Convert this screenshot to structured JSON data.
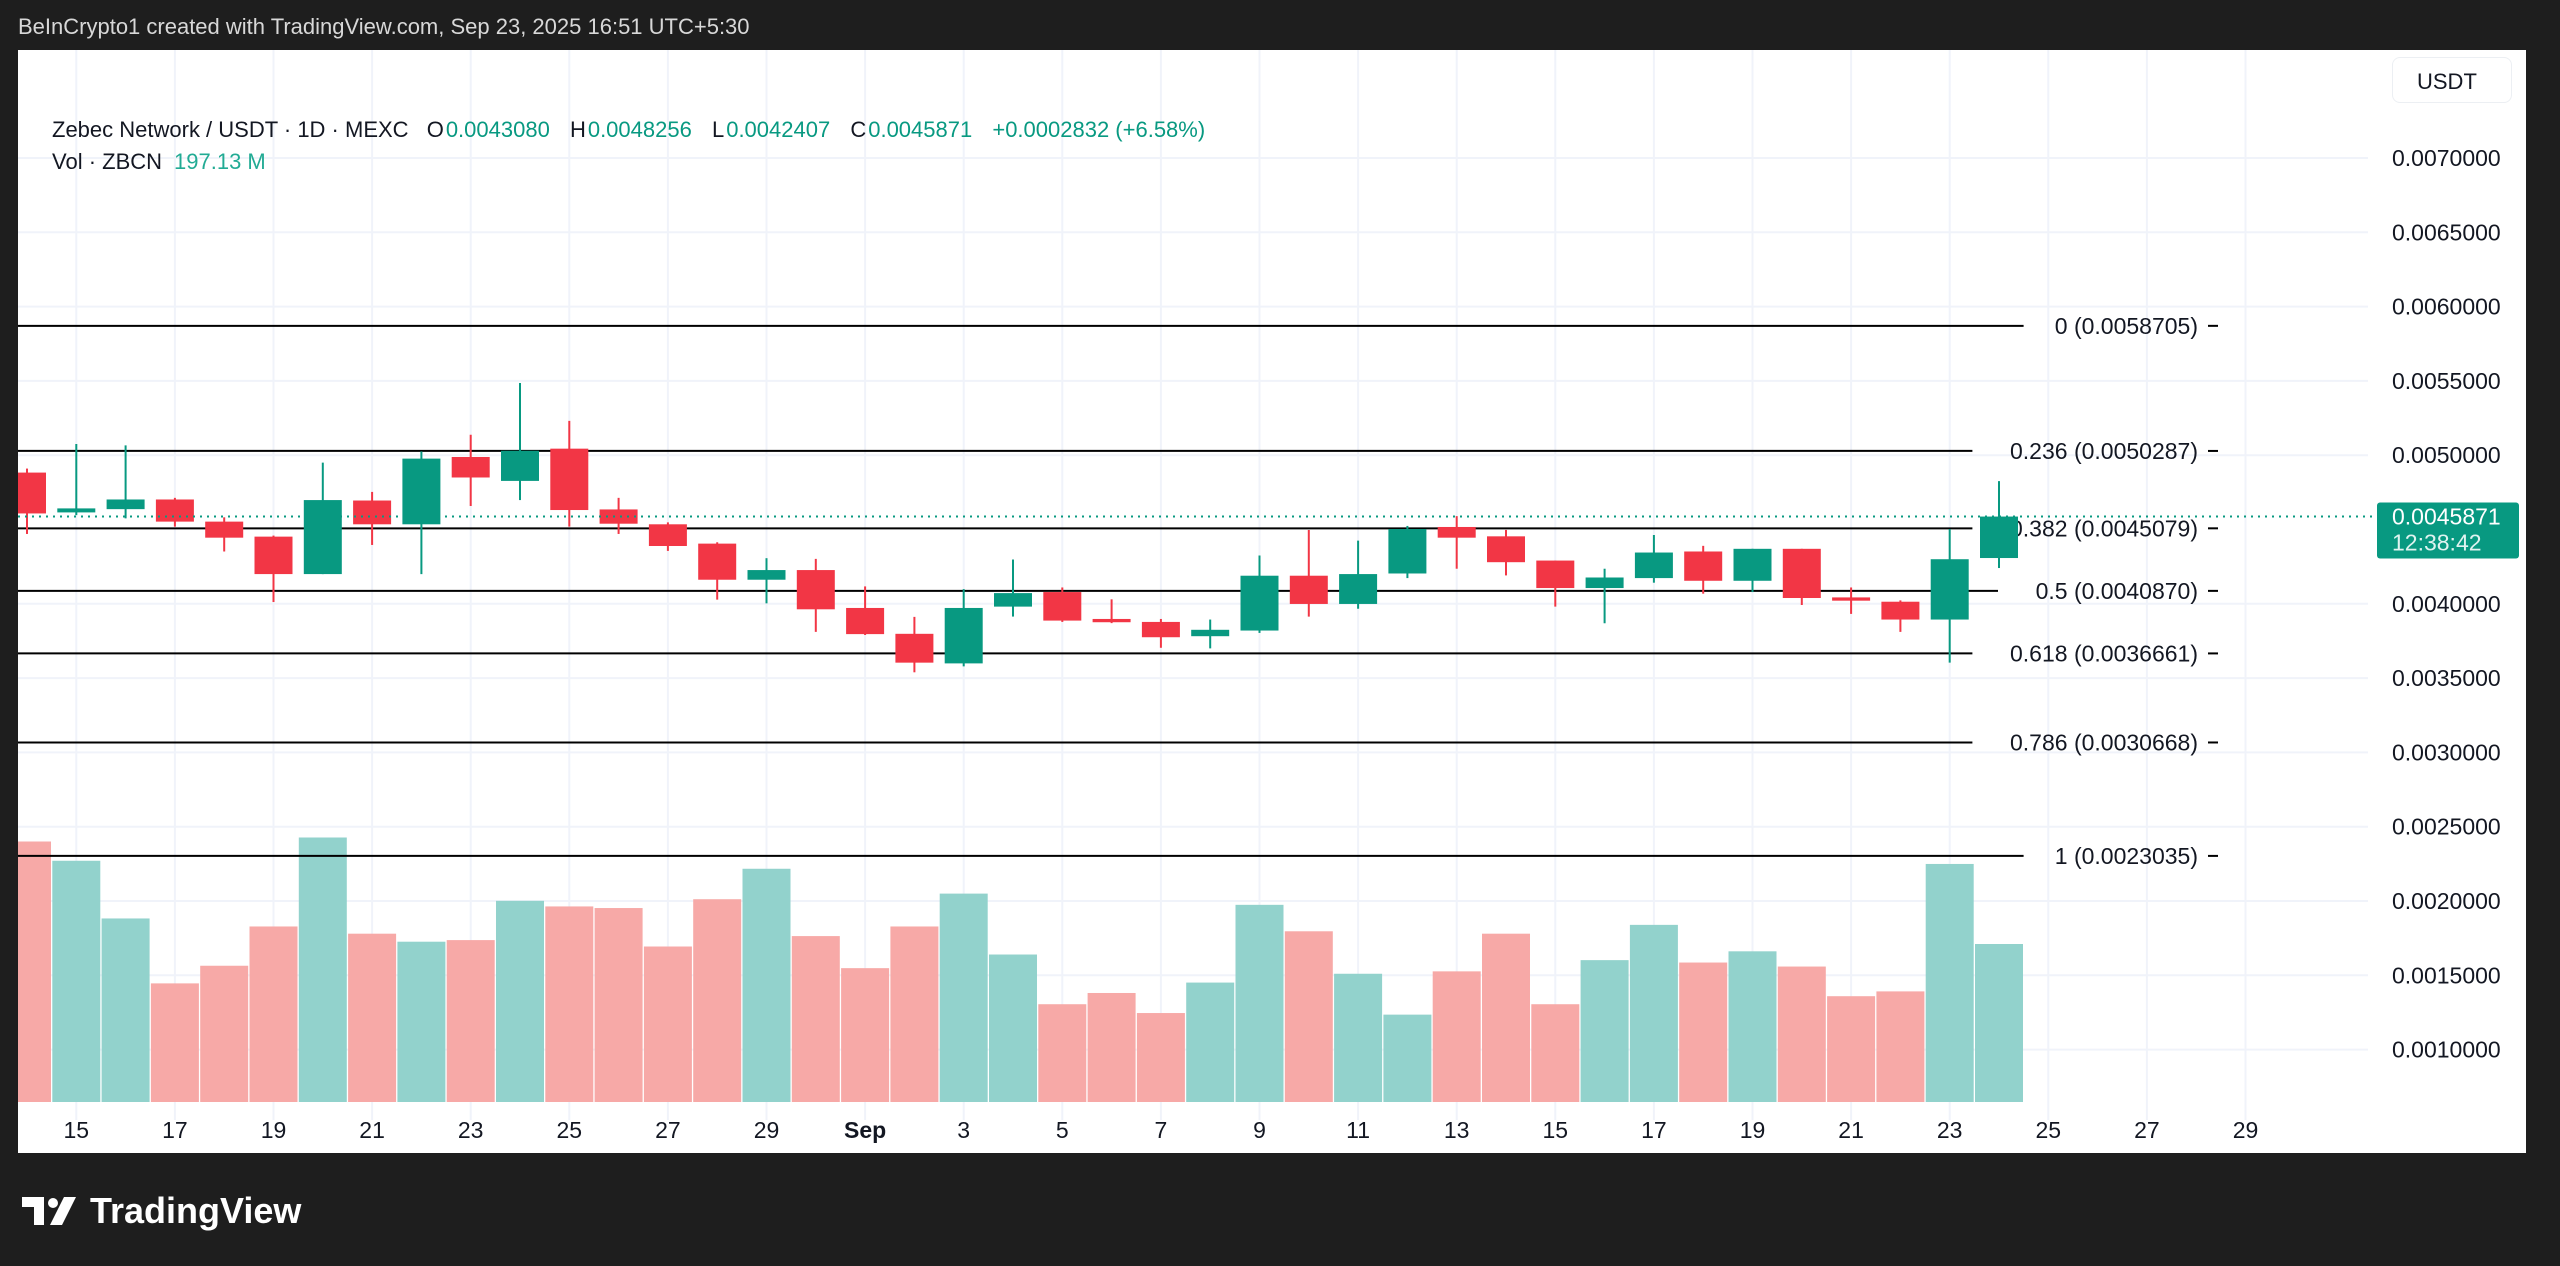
{
  "topline": "BeInCrypto1 created with TradingView.com, Sep 23, 2025 16:51 UTC+5:30",
  "legend": {
    "symbol": "Zebec Network / USDT · 1D · MEXC",
    "o_label": "O",
    "o": "0.0043080",
    "h_label": "H",
    "h": "0.0048256",
    "l_label": "L",
    "l": "0.0042407",
    "c_label": "C",
    "c": "0.0045871",
    "change": "+0.0002832 (+6.58%)",
    "vol_label": "Vol · ZBCN",
    "vol": "197.13 M"
  },
  "currency_button": "USDT",
  "brand": "TradingView",
  "price_tag": {
    "price": "0.0045871",
    "countdown": "12:38:42"
  },
  "colors": {
    "up": "#089981",
    "down": "#f23645",
    "vol_up": "#92d2cc",
    "vol_down": "#f7a9a7",
    "fib_line": "#000000"
  },
  "chart_data": {
    "type": "candlestick",
    "title": "",
    "ylim": [
      0.0005,
      0.0072
    ],
    "y_ticks": [
      "0.0070000",
      "0.0065000",
      "0.0060000",
      "0.0055000",
      "0.0050000",
      "0.0040000",
      "0.0035000",
      "0.0030000",
      "0.0025000",
      "0.0020000",
      "0.0015000",
      "0.0010000"
    ],
    "x_ticks": [
      "15",
      "17",
      "19",
      "21",
      "23",
      "25",
      "27",
      "29",
      "Sep",
      "3",
      "5",
      "7",
      "9",
      "11",
      "13",
      "15",
      "17",
      "19",
      "21",
      "23",
      "25",
      "27",
      "29"
    ],
    "volume_unit": "M",
    "fib_levels": [
      {
        "label": "0 (0.0058705)",
        "price": 0.0058705
      },
      {
        "label": "0.236 (0.0050287)",
        "price": 0.0050287
      },
      {
        "label": "0.382 (0.0045079)",
        "price": 0.0045079
      },
      {
        "label": "0.5 (0.0040870)",
        "price": 0.004087
      },
      {
        "label": "0.618 (0.0036661)",
        "price": 0.0036661
      },
      {
        "label": "0.786 (0.0030668)",
        "price": 0.0030668
      },
      {
        "label": "1 (0.0023035)",
        "price": 0.0023035
      }
    ],
    "candles": [
      {
        "date": "2025-08-14",
        "o": 0.004883,
        "h": 0.00491,
        "l": 0.00447,
        "c": 0.004608,
        "v": 325
      },
      {
        "date": "2025-08-15",
        "o": 0.004615,
        "h": 0.005075,
        "l": 0.004597,
        "c": 0.004642,
        "v": 301
      },
      {
        "date": "2025-08-16",
        "o": 0.004637,
        "h": 0.005066,
        "l": 0.004575,
        "c": 0.004702,
        "v": 229
      },
      {
        "date": "2025-08-17",
        "o": 0.004702,
        "h": 0.004713,
        "l": 0.004519,
        "c": 0.004553,
        "v": 148
      },
      {
        "date": "2025-08-18",
        "o": 0.004553,
        "h": 0.004582,
        "l": 0.004352,
        "c": 0.004445,
        "v": 170
      },
      {
        "date": "2025-08-19",
        "o": 0.004452,
        "h": 0.004459,
        "l": 0.004012,
        "c": 0.0042,
        "v": 219
      },
      {
        "date": "2025-08-20",
        "o": 0.0042,
        "h": 0.00495,
        "l": 0.0042,
        "c": 0.004698,
        "v": 330
      },
      {
        "date": "2025-08-21",
        "o": 0.004695,
        "h": 0.004753,
        "l": 0.004396,
        "c": 0.004535,
        "v": 210
      },
      {
        "date": "2025-08-22",
        "o": 0.004535,
        "h": 0.005026,
        "l": 0.0042,
        "c": 0.004977,
        "v": 200
      },
      {
        "date": "2025-08-23",
        "o": 0.004988,
        "h": 0.005138,
        "l": 0.004658,
        "c": 0.00485,
        "v": 202
      },
      {
        "date": "2025-08-24",
        "o": 0.004827,
        "h": 0.005486,
        "l": 0.004698,
        "c": 0.00503,
        "v": 251
      },
      {
        "date": "2025-08-25",
        "o": 0.005044,
        "h": 0.005231,
        "l": 0.004519,
        "c": 0.004631,
        "v": 244
      },
      {
        "date": "2025-08-26",
        "o": 0.004635,
        "h": 0.004713,
        "l": 0.00447,
        "c": 0.004539,
        "v": 242
      },
      {
        "date": "2025-08-27",
        "o": 0.004535,
        "h": 0.004548,
        "l": 0.004356,
        "c": 0.004389,
        "v": 194
      },
      {
        "date": "2025-08-28",
        "o": 0.004405,
        "h": 0.004414,
        "l": 0.004028,
        "c": 0.004162,
        "v": 253
      },
      {
        "date": "2025-08-29",
        "o": 0.004162,
        "h": 0.004307,
        "l": 0.004003,
        "c": 0.004227,
        "v": 291
      },
      {
        "date": "2025-08-30",
        "o": 0.004227,
        "h": 0.004302,
        "l": 0.003811,
        "c": 0.003963,
        "v": 207
      },
      {
        "date": "2025-08-31",
        "o": 0.003972,
        "h": 0.004117,
        "l": 0.00379,
        "c": 0.003796,
        "v": 167
      },
      {
        "date": "2025-09-01",
        "o": 0.003798,
        "h": 0.003912,
        "l": 0.003539,
        "c": 0.003604,
        "v": 219
      },
      {
        "date": "2025-09-02",
        "o": 0.003599,
        "h": 0.004099,
        "l": 0.003579,
        "c": 0.003972,
        "v": 260
      },
      {
        "date": "2025-09-03",
        "o": 0.003981,
        "h": 0.004298,
        "l": 0.003914,
        "c": 0.004072,
        "v": 184
      },
      {
        "date": "2025-09-04",
        "o": 0.004079,
        "h": 0.00411,
        "l": 0.003878,
        "c": 0.003887,
        "v": 122
      },
      {
        "date": "2025-09-05",
        "o": 0.003898,
        "h": 0.00403,
        "l": 0.00387,
        "c": 0.003876,
        "v": 136
      },
      {
        "date": "2025-09-06",
        "o": 0.003878,
        "h": 0.003898,
        "l": 0.003704,
        "c": 0.003775,
        "v": 111
      },
      {
        "date": "2025-09-07",
        "o": 0.003782,
        "h": 0.003894,
        "l": 0.0037,
        "c": 0.003825,
        "v": 149
      },
      {
        "date": "2025-09-08",
        "o": 0.00382,
        "h": 0.004325,
        "l": 0.003804,
        "c": 0.004189,
        "v": 246
      },
      {
        "date": "2025-09-09",
        "o": 0.004189,
        "h": 0.004497,
        "l": 0.003914,
        "c": 0.003999,
        "v": 213
      },
      {
        "date": "2025-09-10",
        "o": 0.003999,
        "h": 0.004425,
        "l": 0.003967,
        "c": 0.0042,
        "v": 160
      },
      {
        "date": "2025-09-11",
        "o": 0.004204,
        "h": 0.004524,
        "l": 0.004173,
        "c": 0.004503,
        "v": 109
      },
      {
        "date": "2025-09-12",
        "o": 0.004517,
        "h": 0.00459,
        "l": 0.004236,
        "c": 0.004445,
        "v": 163
      },
      {
        "date": "2025-09-13",
        "o": 0.004454,
        "h": 0.004497,
        "l": 0.004191,
        "c": 0.00428,
        "v": 210
      },
      {
        "date": "2025-09-14",
        "o": 0.004291,
        "h": 0.004291,
        "l": 0.003981,
        "c": 0.004106,
        "v": 122
      },
      {
        "date": "2025-09-15",
        "o": 0.004106,
        "h": 0.004236,
        "l": 0.003869,
        "c": 0.004177,
        "v": 177
      },
      {
        "date": "2025-09-16",
        "o": 0.004173,
        "h": 0.004463,
        "l": 0.004142,
        "c": 0.004345,
        "v": 221
      },
      {
        "date": "2025-09-17",
        "o": 0.004352,
        "h": 0.00439,
        "l": 0.004068,
        "c": 0.004155,
        "v": 174
      },
      {
        "date": "2025-09-18",
        "o": 0.004155,
        "h": 0.00437,
        "l": 0.004079,
        "c": 0.00437,
        "v": 188
      },
      {
        "date": "2025-09-19",
        "o": 0.00437,
        "h": 0.00437,
        "l": 0.003992,
        "c": 0.004039,
        "v": 169
      },
      {
        "date": "2025-09-20",
        "o": 0.004043,
        "h": 0.00411,
        "l": 0.003932,
        "c": 0.004021,
        "v": 132
      },
      {
        "date": "2025-09-21",
        "o": 0.004014,
        "h": 0.004023,
        "l": 0.003811,
        "c": 0.003894,
        "v": 138
      },
      {
        "date": "2025-09-22",
        "o": 0.003894,
        "h": 0.004503,
        "l": 0.003604,
        "c": 0.0043,
        "v": 297
      },
      {
        "date": "2025-09-23",
        "o": 0.004308,
        "h": 0.0048256,
        "l": 0.0042407,
        "c": 0.0045871,
        "v": 197.13
      }
    ]
  }
}
